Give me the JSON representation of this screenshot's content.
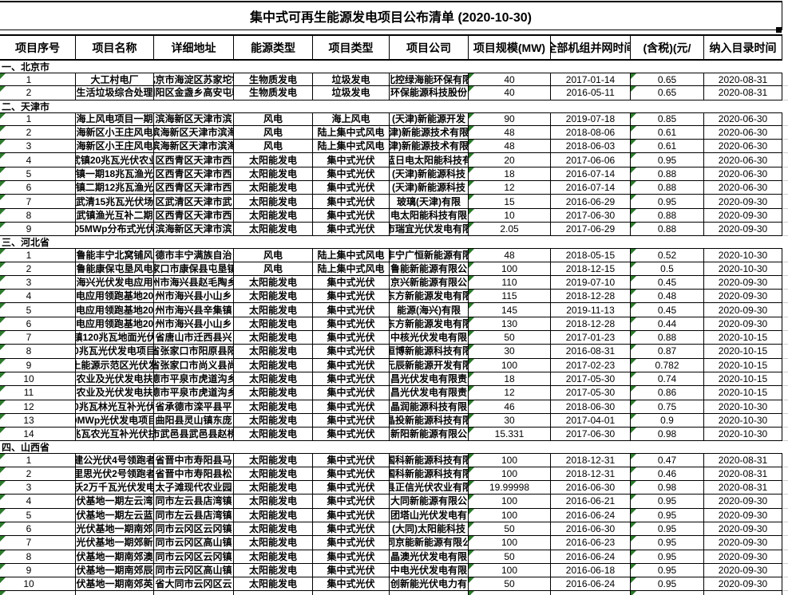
{
  "title": "集中式可再生能源发电项目公布清单 (2020-10-30)",
  "columns": [
    "项目序号",
    "项目名称",
    "详细地址",
    "能源类型",
    "项目类型",
    "项目公司",
    "项目规模(MW)",
    "全部机组并网时间",
    "(含税)(元/",
    "纳入目录时间"
  ],
  "sections": [
    {
      "label": "一、北京市",
      "rows": [
        [
          "1",
          "大工村电厂",
          "北京市海淀区苏家坨镇",
          "生物质发电",
          "垃圾发电",
          "北控绿海能环保有限",
          "40",
          "2017-01-14",
          "0.65",
          "2020-08-31"
        ],
        [
          "2",
          "生活垃圾综合处理",
          "朝阳区金盏乡高安屯朝",
          "生物质发电",
          "垃圾发电",
          "环保能源科技股份",
          "40",
          "2016-05-11",
          "0.65",
          "2020-08-31"
        ]
      ]
    },
    {
      "label": "二、天津市",
      "rows": [
        [
          "1",
          "海上风电项目一期",
          "滨海新区天津市滨",
          "风电",
          "海上风电",
          "(天津)新能源开发",
          "90",
          "2019-07-18",
          "0.85",
          "2020-06-30"
        ],
        [
          "2",
          "海新区小王庄风电",
          "滨海新区天津市滨海",
          "风电",
          "陆上集中式风电",
          "津)新能源技术有限",
          "48",
          "2018-08-06",
          "0.61",
          "2020-06-30"
        ],
        [
          "3",
          "海新区小王庄风电",
          "滨海新区天津市滨海",
          "风电",
          "陆上集中式风电",
          "津)新能源技术有限",
          "48",
          "2018-06-03",
          "0.61",
          "2020-06-30"
        ],
        [
          "4",
          "武镇20兆瓦光伏农业",
          "区西青区天津市西",
          "太阳能发电",
          "集中式光伏",
          "蓝日电太阳能科技有",
          "20",
          "2017-06-06",
          "0.95",
          "2020-06-30"
        ],
        [
          "5",
          "镇一期18兆瓦渔光",
          "区西青区天津市西",
          "太阳能发电",
          "集中式光伏",
          "(天津)新能源科技",
          "18",
          "2016-07-14",
          "0.88",
          "2020-06-30"
        ],
        [
          "6",
          "镇二期12兆瓦渔光",
          "区西青区天津市西",
          "太阳能发电",
          "集中式光伏",
          "(天津)新能源科技",
          "12",
          "2016-07-14",
          "0.88",
          "2020-06-30"
        ],
        [
          "7",
          "武清15兆瓦光伏场",
          "区武清区天津市武",
          "太阳能发电",
          "集中式光伏",
          "玻璃(天津)有限",
          "15",
          "2016-06-29",
          "0.95",
          "2020-09-30"
        ],
        [
          "8",
          "武镇渔光互补二期",
          "区西青区天津市西",
          "太阳能发电",
          "集中式光伏",
          "电太阳能科技有限",
          "10",
          "2017-06-30",
          "0.88",
          "2020-09-30"
        ],
        [
          "9",
          "05MWp分布式光伏",
          "滨海新区天津市滨",
          "太阳能发电",
          "集中式光伏",
          "市瑞宜光伏发电有限",
          "2.05",
          "2017-06-29",
          "0.88",
          "2020-09-30"
        ]
      ]
    },
    {
      "label": "三、河北省",
      "rows": [
        [
          "1",
          "鲁能丰宁北窝铺风",
          "德市丰宁满族自治",
          "风电",
          "陆上集中式风电",
          "丰宁广恒新能源有限",
          "48",
          "2018-05-15",
          "0.52",
          "2020-10-30"
        ],
        [
          "2",
          "鲁能康保屯垦风电",
          "家口市康保县屯垦镇",
          "风电",
          "陆上集中式风电",
          "鲁能新能源有限公",
          "100",
          "2018-12-15",
          "0.5",
          "2020-10-30"
        ],
        [
          "3",
          "海兴光伏发电应用",
          "州市海兴县赵毛陶乡",
          "太阳能发电",
          "集中式光伏",
          "京兴新能源有限公",
          "110",
          "2019-07-10",
          "0.45",
          "2020-09-30"
        ],
        [
          "4",
          "电应用领跑基地20",
          "州市海兴县小山乡",
          "太阳能发电",
          "集中式光伏",
          "东方新能源发电有限",
          "115",
          "2018-12-28",
          "0.48",
          "2020-09-30"
        ],
        [
          "5",
          "电应用领跑基地20",
          "州市海兴县辛集镇",
          "太阳能发电",
          "集中式光伏",
          "能源(海兴)有限",
          "145",
          "2019-11-13",
          "0.45",
          "2020-09-30"
        ],
        [
          "6",
          "电应用领跑基地20",
          "州市海兴县小山乡",
          "太阳能发电",
          "集中式光伏",
          "东方新能源发电有限",
          "130",
          "2018-12-28",
          "0.44",
          "2020-09-30"
        ],
        [
          "7",
          "镇120兆瓦地面光伏",
          "省唐山市迁西县兴",
          "太阳能发电",
          "集中式光伏",
          "中核光伏发电有限",
          "50",
          "2017-01-23",
          "0.88",
          "2020-10-15"
        ],
        [
          "8",
          "0兆瓦光伏发电项目",
          "省张家口市阳原县阳",
          "太阳能发电",
          "集中式光伏",
          "恒博新能源科技有限",
          "30",
          "2016-08-31",
          "0.87",
          "2020-10-15"
        ],
        [
          "9",
          "上能源示范区光伏发",
          "省张家口市尚义县尚",
          "太阳能发电",
          "集中式光伏",
          "元辰新能源开发有限",
          "100",
          "2017-02-23",
          "0.782",
          "2020-10-15"
        ],
        [
          "10",
          "农业及光伏发电扶",
          "德市平泉市虎道沟乡",
          "太阳能发电",
          "集中式光伏",
          "昌光伏发电有限责",
          "18",
          "2017-05-30",
          "0.74",
          "2020-10-15"
        ],
        [
          "11",
          "农业及光伏发电扶",
          "德市平泉市虎道沟乡",
          "太阳能发电",
          "集中式光伏",
          "昌光伏发电有限责",
          "12",
          "2017-05-30",
          "0.86",
          "2020-10-15"
        ],
        [
          "12",
          "0兆瓦林光互补光伏",
          "省承德市滦平县平",
          "太阳能发电",
          "集中式光伏",
          "晶润能源科技有限",
          "46",
          "2018-06-30",
          "0.75",
          "2020-10-30"
        ],
        [
          "13",
          "0MWp光伏发电项目",
          "曲阳县灵山镇东庞",
          "太阳能发电",
          "集中式光伏",
          "晶投新能源科技有限",
          "30",
          "2017-04-01",
          "0.9",
          "2020-10-30"
        ],
        [
          "14",
          "兆瓦农光互补光伏扶",
          "市武邑县武邑县赵桥",
          "太阳能发电",
          "集中式光伏",
          "新阳新能源有限公",
          "15.331",
          "2017-06-30",
          "0.98",
          "2020-10-30"
        ]
      ]
    },
    {
      "label": "四、山西省",
      "rows": [
        [
          "1",
          "建公光伏4号领跑者",
          "省晋中市寿阳县马",
          "太阳能发电",
          "集中式光伏",
          "国科新能源科技有限",
          "100",
          "2018-12-31",
          "0.47",
          "2020-08-31"
        ],
        [
          "2",
          "里思光伏2号领跑者",
          "省晋中市寿阳县松",
          "太阳能发电",
          "集中式光伏",
          "国科新能源科技有限",
          "100",
          "2018-12-31",
          "0.46",
          "2020-08-31"
        ],
        [
          "3",
          "沃2万千瓦光伏发电",
          "太子滩现代农业园",
          "太阳能发电",
          "集中式光伏",
          "县正信光伏农业有限",
          "19.99998",
          "2016-06-30",
          "0.98",
          "2020-08-31"
        ],
        [
          "4",
          "伏基地一期左云湾",
          "同市左云县店湾镇",
          "太阳能发电",
          "集中式光伏",
          "大同新能源有限公",
          "100",
          "2016-06-21",
          "0.95",
          "2020-09-30"
        ],
        [
          "5",
          "伏基地一期左云蓝",
          "同市左云县店湾镇",
          "太阳能发电",
          "集中式光伏",
          "团塔山光伏发电有",
          "100",
          "2016-06-24",
          "0.95",
          "2020-09-30"
        ],
        [
          "6",
          "光伏基地一期南郊",
          "同市云冈区云冈镇",
          "太阳能发电",
          "集中式光伏",
          "(大同)太阳能科技",
          "50",
          "2016-06-30",
          "0.95",
          "2020-09-30"
        ],
        [
          "7",
          "光伏基地一期郊新",
          "同市云冈区高山镇",
          "太阳能发电",
          "集中式光伏",
          "同京能新能源有限公",
          "100",
          "2016-06-23",
          "0.95",
          "2020-09-30"
        ],
        [
          "8",
          "伏基地一期南郊澳",
          "同市云冈区云冈镇",
          "太阳能发电",
          "集中式光伏",
          "晶澳光伏发电有限",
          "50",
          "2016-06-24",
          "0.95",
          "2020-09-30"
        ],
        [
          "9",
          "伏基地一期南郊辰",
          "同市云冈区高山镇",
          "太阳能发电",
          "集中式光伏",
          "中电光伏发电有限",
          "100",
          "2016-06-18",
          "0.95",
          "2020-09-30"
        ],
        [
          "10",
          "伏基地一期南郊英",
          "省大同市云冈区云",
          "太阳能发电",
          "集中式光伏",
          "创新能光伏电力有",
          "50",
          "2016-06-24",
          "0.95",
          "2020-09-30"
        ]
      ]
    }
  ],
  "error_indicator_columns": [
    0,
    6,
    8
  ],
  "colors": {
    "border": "#000000",
    "error_indicator": "#2c7a2c",
    "margin_gridline": "#cfcfcf",
    "background": "#ffffff"
  }
}
